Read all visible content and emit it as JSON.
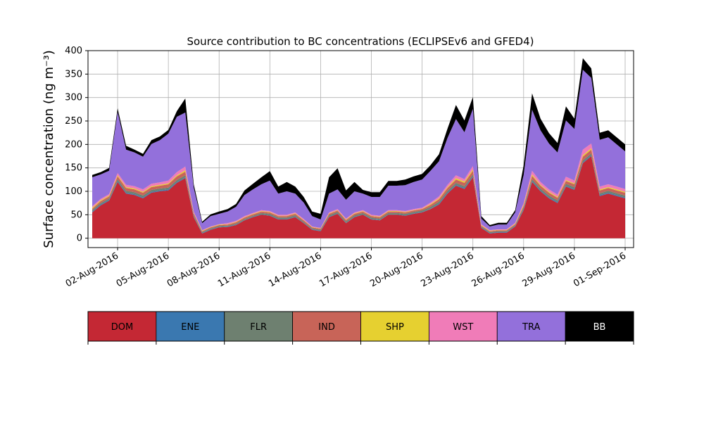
{
  "chart_data": {
    "type": "area",
    "stacked": true,
    "title": "Source contribution to BC concentrations (ECLIPSEv6 and GFED4)",
    "ylabel": "Surface concentration (ng m⁻³)",
    "xlabel": "",
    "ylim": [
      -20,
      400
    ],
    "xlim": [
      "2016-07-31T06:00",
      "2016-09-01T12:00"
    ],
    "grid": true,
    "x_tick_labels": [
      "02-Aug-2016",
      "05-Aug-2016",
      "08-Aug-2016",
      "11-Aug-2016",
      "14-Aug-2016",
      "17-Aug-2016",
      "20-Aug-2016",
      "23-Aug-2016",
      "26-Aug-2016",
      "29-Aug-2016",
      "01-Sep-2016"
    ],
    "x_tick_dates": [
      "2016-08-02",
      "2016-08-05",
      "2016-08-08",
      "2016-08-11",
      "2016-08-14",
      "2016-08-17",
      "2016-08-20",
      "2016-08-23",
      "2016-08-26",
      "2016-08-29",
      "2016-09-01"
    ],
    "y_ticks": [
      0,
      50,
      100,
      150,
      200,
      250,
      300,
      350,
      400
    ],
    "x": [
      "2016-07-31T12:00",
      "2016-08-01",
      "2016-08-01T12:00",
      "2016-08-02",
      "2016-08-02T12:00",
      "2016-08-03",
      "2016-08-03T12:00",
      "2016-08-04",
      "2016-08-04T12:00",
      "2016-08-05",
      "2016-08-05T12:00",
      "2016-08-06",
      "2016-08-06T12:00",
      "2016-08-07",
      "2016-08-07T12:00",
      "2016-08-08",
      "2016-08-08T12:00",
      "2016-08-09",
      "2016-08-09T12:00",
      "2016-08-10",
      "2016-08-10T12:00",
      "2016-08-11",
      "2016-08-11T12:00",
      "2016-08-12",
      "2016-08-12T12:00",
      "2016-08-13",
      "2016-08-13T12:00",
      "2016-08-14",
      "2016-08-14T12:00",
      "2016-08-15",
      "2016-08-15T12:00",
      "2016-08-16",
      "2016-08-16T12:00",
      "2016-08-17",
      "2016-08-17T12:00",
      "2016-08-18",
      "2016-08-18T12:00",
      "2016-08-19",
      "2016-08-19T12:00",
      "2016-08-20",
      "2016-08-20T12:00",
      "2016-08-21",
      "2016-08-21T12:00",
      "2016-08-22",
      "2016-08-22T12:00",
      "2016-08-23",
      "2016-08-23T12:00",
      "2016-08-24",
      "2016-08-24T12:00",
      "2016-08-25",
      "2016-08-25T12:00",
      "2016-08-26",
      "2016-08-26T12:00",
      "2016-08-27",
      "2016-08-27T12:00",
      "2016-08-28",
      "2016-08-28T12:00",
      "2016-08-29",
      "2016-08-29T12:00",
      "2016-08-30",
      "2016-08-30T12:00",
      "2016-08-31",
      "2016-08-31T12:00",
      "2016-09-01"
    ],
    "series": [
      {
        "name": "DOM",
        "color": "#c42834",
        "values": [
          55,
          70,
          80,
          120,
          95,
          92,
          85,
          97,
          100,
          102,
          118,
          128,
          45,
          10,
          18,
          23,
          24,
          28,
          38,
          45,
          50,
          48,
          40,
          40,
          45,
          32,
          18,
          15,
          45,
          52,
          32,
          45,
          50,
          40,
          38,
          50,
          50,
          48,
          52,
          55,
          62,
          72,
          95,
          112,
          105,
          130,
          22,
          10,
          12,
          12,
          25,
          60,
          120,
          100,
          85,
          75,
          110,
          103,
          160,
          175,
          90,
          95,
          90,
          85
        ]
      },
      {
        "name": "ENE",
        "color": "#3a78b0",
        "values": [
          2,
          2,
          2,
          2,
          2,
          2,
          2,
          2,
          2,
          2,
          2,
          2,
          1,
          1,
          1,
          1,
          1,
          1,
          1,
          1,
          1,
          1,
          1,
          1,
          1,
          1,
          1,
          1,
          1,
          1,
          1,
          1,
          1,
          1,
          1,
          1,
          1,
          1,
          1,
          1,
          1,
          2,
          2,
          2,
          2,
          2,
          1,
          1,
          1,
          1,
          1,
          2,
          2,
          2,
          2,
          2,
          2,
          2,
          2,
          2,
          2,
          2,
          2,
          2
        ]
      },
      {
        "name": "FLR",
        "color": "#6e8070",
        "values": [
          3,
          3,
          3,
          4,
          4,
          4,
          4,
          4,
          4,
          4,
          4,
          4,
          3,
          2,
          2,
          2,
          2,
          2,
          2,
          2,
          3,
          3,
          3,
          3,
          3,
          2,
          2,
          2,
          3,
          3,
          3,
          3,
          3,
          3,
          3,
          3,
          3,
          3,
          3,
          3,
          4,
          4,
          4,
          4,
          4,
          4,
          2,
          2,
          2,
          2,
          2,
          3,
          4,
          4,
          4,
          4,
          4,
          4,
          4,
          4,
          4,
          4,
          4,
          4
        ]
      },
      {
        "name": "IND",
        "color": "#c86458",
        "values": [
          3,
          4,
          4,
          6,
          6,
          6,
          6,
          6,
          6,
          7,
          8,
          8,
          4,
          2,
          2,
          2,
          2,
          3,
          3,
          3,
          3,
          3,
          3,
          3,
          3,
          3,
          2,
          2,
          3,
          3,
          3,
          3,
          3,
          3,
          3,
          3,
          3,
          3,
          3,
          3,
          4,
          5,
          6,
          7,
          7,
          8,
          2,
          2,
          2,
          2,
          2,
          4,
          7,
          6,
          6,
          5,
          6,
          6,
          8,
          8,
          6,
          6,
          6,
          6
        ]
      },
      {
        "name": "SHP",
        "color": "#e6d030",
        "values": [
          2,
          2,
          2,
          2,
          2,
          2,
          2,
          2,
          2,
          2,
          2,
          3,
          1,
          1,
          1,
          1,
          1,
          1,
          1,
          1,
          1,
          1,
          1,
          1,
          1,
          1,
          1,
          1,
          1,
          1,
          1,
          1,
          1,
          1,
          1,
          1,
          1,
          1,
          1,
          1,
          2,
          2,
          2,
          3,
          3,
          3,
          1,
          1,
          1,
          1,
          1,
          2,
          3,
          2,
          2,
          2,
          2,
          2,
          3,
          3,
          2,
          2,
          2,
          2
        ]
      },
      {
        "name": "WST",
        "color": "#f07cb8",
        "values": [
          3,
          3,
          3,
          5,
          5,
          5,
          5,
          5,
          5,
          6,
          7,
          8,
          3,
          1,
          1,
          1,
          2,
          2,
          2,
          2,
          2,
          2,
          2,
          2,
          2,
          2,
          1,
          1,
          2,
          2,
          2,
          2,
          2,
          2,
          2,
          2,
          2,
          2,
          2,
          2,
          3,
          4,
          5,
          6,
          5,
          7,
          2,
          1,
          1,
          1,
          2,
          4,
          8,
          6,
          5,
          5,
          7,
          6,
          12,
          10,
          6,
          6,
          6,
          6
        ]
      },
      {
        "name": "TRA",
        "color": "#9370db",
        "values": [
          62,
          52,
          50,
          130,
          75,
          72,
          70,
          85,
          90,
          100,
          118,
          115,
          50,
          15,
          22,
          22,
          25,
          30,
          45,
          50,
          55,
          65,
          45,
          50,
          40,
          35,
          22,
          18,
          40,
          42,
          40,
          45,
          35,
          38,
          40,
          52,
          52,
          55,
          58,
          60,
          68,
          75,
          100,
          120,
          100,
          122,
          12,
          8,
          10,
          10,
          22,
          60,
          130,
          110,
          98,
          90,
          120,
          110,
          170,
          140,
          100,
          100,
          90,
          80
        ]
      },
      {
        "name": "BB",
        "color": "#000000",
        "values": [
          5,
          5,
          6,
          8,
          8,
          6,
          6,
          8,
          8,
          8,
          12,
          30,
          8,
          3,
          4,
          5,
          5,
          6,
          10,
          12,
          15,
          20,
          15,
          20,
          15,
          12,
          10,
          12,
          35,
          45,
          20,
          20,
          8,
          10,
          10,
          10,
          10,
          12,
          12,
          12,
          12,
          15,
          20,
          30,
          25,
          25,
          5,
          3,
          4,
          4,
          5,
          20,
          35,
          25,
          22,
          20,
          30,
          22,
          25,
          20,
          15,
          15,
          15,
          15
        ]
      }
    ],
    "legend": {
      "placement": "bottom",
      "entries": [
        "DOM",
        "ENE",
        "FLR",
        "IND",
        "SHP",
        "WST",
        "TRA",
        "BB"
      ]
    }
  }
}
